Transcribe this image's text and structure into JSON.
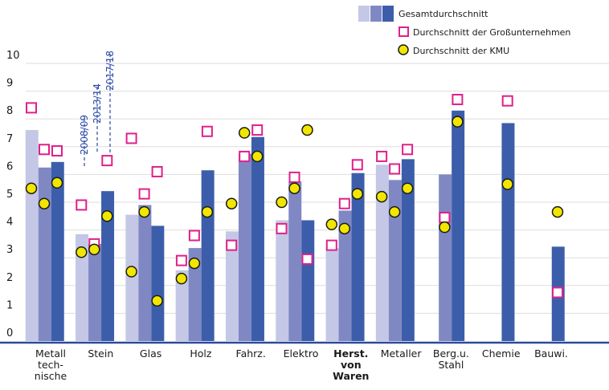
{
  "chart_data": {
    "type": "bar",
    "ylim": [
      0,
      10
    ],
    "yticks": [
      "0",
      "1",
      "2",
      "3",
      "4",
      "5",
      "6",
      "7",
      "8",
      "9",
      "10"
    ],
    "grid": true,
    "legend_position": "top-right",
    "colors": {
      "bars": [
        "#c4c8e6",
        "#8088c4",
        "#3c5eaa"
      ],
      "large_marker_stroke": "#e0208a",
      "kmu_marker_fill": "#f2e600",
      "axis_line": "#2c4a9a",
      "gridline": "#dddddd"
    },
    "bar_legend": {
      "label": "Gesamtdurchschnitt"
    },
    "year_labels": [
      "2008/09",
      "2013/14",
      "2017/18"
    ],
    "categories": [
      {
        "lines": [
          "Metall",
          "tech-",
          "nische"
        ],
        "bold": false
      },
      {
        "lines": [
          "Stein"
        ],
        "bold": false
      },
      {
        "lines": [
          "Glas"
        ],
        "bold": false
      },
      {
        "lines": [
          "Holz"
        ],
        "bold": false
      },
      {
        "lines": [
          "Fahrz."
        ],
        "bold": false
      },
      {
        "lines": [
          "Elektro"
        ],
        "bold": false
      },
      {
        "lines": [
          "Herst.",
          "von",
          "Waren"
        ],
        "bold": true
      },
      {
        "lines": [
          "Metaller"
        ],
        "bold": false
      },
      {
        "lines": [
          "Berg.u.",
          "Stahl"
        ],
        "bold": false
      },
      {
        "lines": [
          "Chemie"
        ],
        "bold": false
      },
      {
        "lines": [
          "Bauwi."
        ],
        "bold": false
      }
    ],
    "series": [
      {
        "name": "Gesamtdurchschnitt",
        "years": [
          "2008/09",
          "2013/14",
          "2017/18"
        ],
        "values": [
          [
            7.6,
            6.25,
            6.45
          ],
          [
            3.85,
            3.5,
            5.4
          ],
          [
            4.55,
            4.9,
            4.15
          ],
          [
            2.55,
            3.35,
            6.15
          ],
          [
            3.95,
            6.75,
            7.35
          ],
          [
            4.35,
            5.75,
            4.35
          ],
          [
            3.35,
            4.7,
            6.05
          ],
          [
            6.35,
            5.8,
            6.55
          ],
          [
            null,
            6.0,
            8.3
          ],
          [
            null,
            null,
            7.85
          ],
          [
            null,
            null,
            3.4
          ]
        ]
      },
      {
        "name": "Durchschnitt der Großunternehmen",
        "values": [
          [
            8.4,
            6.9,
            6.85
          ],
          [
            4.9,
            3.5,
            6.5
          ],
          [
            7.3,
            5.3,
            6.1
          ],
          [
            2.9,
            3.8,
            7.55
          ],
          [
            3.45,
            6.65,
            7.6
          ],
          [
            4.05,
            5.9,
            2.95
          ],
          [
            3.45,
            4.95,
            6.35
          ],
          [
            6.65,
            6.2,
            6.9
          ],
          [
            null,
            4.45,
            8.7
          ],
          [
            null,
            null,
            8.65
          ],
          [
            null,
            null,
            1.75
          ]
        ]
      },
      {
        "name": "Durchschnitt der KMU",
        "values": [
          [
            5.5,
            4.95,
            5.7
          ],
          [
            3.2,
            3.3,
            4.5
          ],
          [
            2.5,
            4.65,
            1.45
          ],
          [
            2.25,
            2.8,
            4.65
          ],
          [
            4.95,
            7.5,
            6.65
          ],
          [
            5.0,
            5.5,
            7.6
          ],
          [
            4.2,
            4.05,
            5.3
          ],
          [
            5.2,
            4.65,
            5.5
          ],
          [
            null,
            4.1,
            7.9
          ],
          [
            null,
            null,
            5.65
          ],
          [
            null,
            null,
            4.65
          ]
        ]
      }
    ]
  }
}
